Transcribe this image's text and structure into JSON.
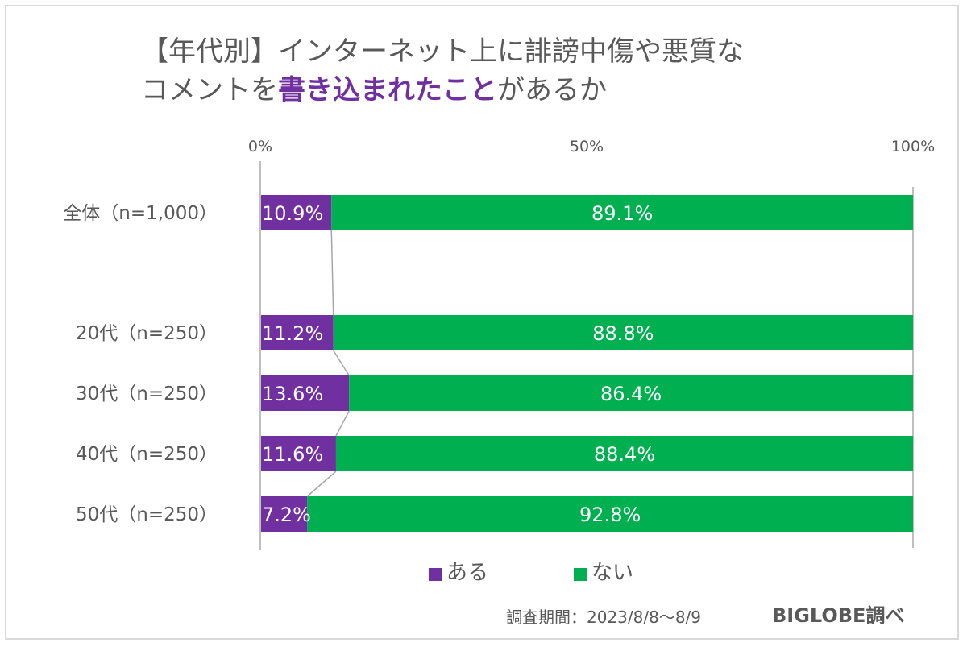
{
  "title": {
    "line1": "【年代別】インターネット上に誹謗中傷や悪質な",
    "line2_pre": "コメントを",
    "line2_highlight": "書き込まれたこと",
    "line2_post": "があるか"
  },
  "colors": {
    "aru": "#7030A0",
    "nai": "#00B050",
    "axis": "#bfbfbf",
    "connector": "#a6a6a6"
  },
  "chart_data": {
    "type": "bar",
    "orientation": "horizontal",
    "stacked": "100%",
    "categories": [
      "全体（n=1,000）",
      "20代（n=250）",
      "30代（n=250）",
      "40代（n=250）",
      "50代（n=250）"
    ],
    "series": [
      {
        "name": "ある",
        "values": [
          10.9,
          11.2,
          13.6,
          11.6,
          7.2
        ],
        "labels": [
          "10.9%",
          "11.2%",
          "13.6%",
          "11.6%",
          "7.2%"
        ]
      },
      {
        "name": "ない",
        "values": [
          89.1,
          88.8,
          86.4,
          88.4,
          92.8
        ],
        "labels": [
          "89.1%",
          "88.8%",
          "86.4%",
          "88.4%",
          "92.8%"
        ]
      }
    ],
    "xlim": [
      0,
      100
    ],
    "xticks": [
      0,
      50,
      100
    ],
    "xtick_labels": [
      "0%",
      "50%",
      "100%"
    ],
    "series_lines": true,
    "legend": "bottom",
    "grid": false
  },
  "legend": {
    "aru": "ある",
    "nai": "ない"
  },
  "footer": {
    "period": "調査期間：2023/8/8～8/9",
    "credit": "BIGLOBE調べ"
  }
}
